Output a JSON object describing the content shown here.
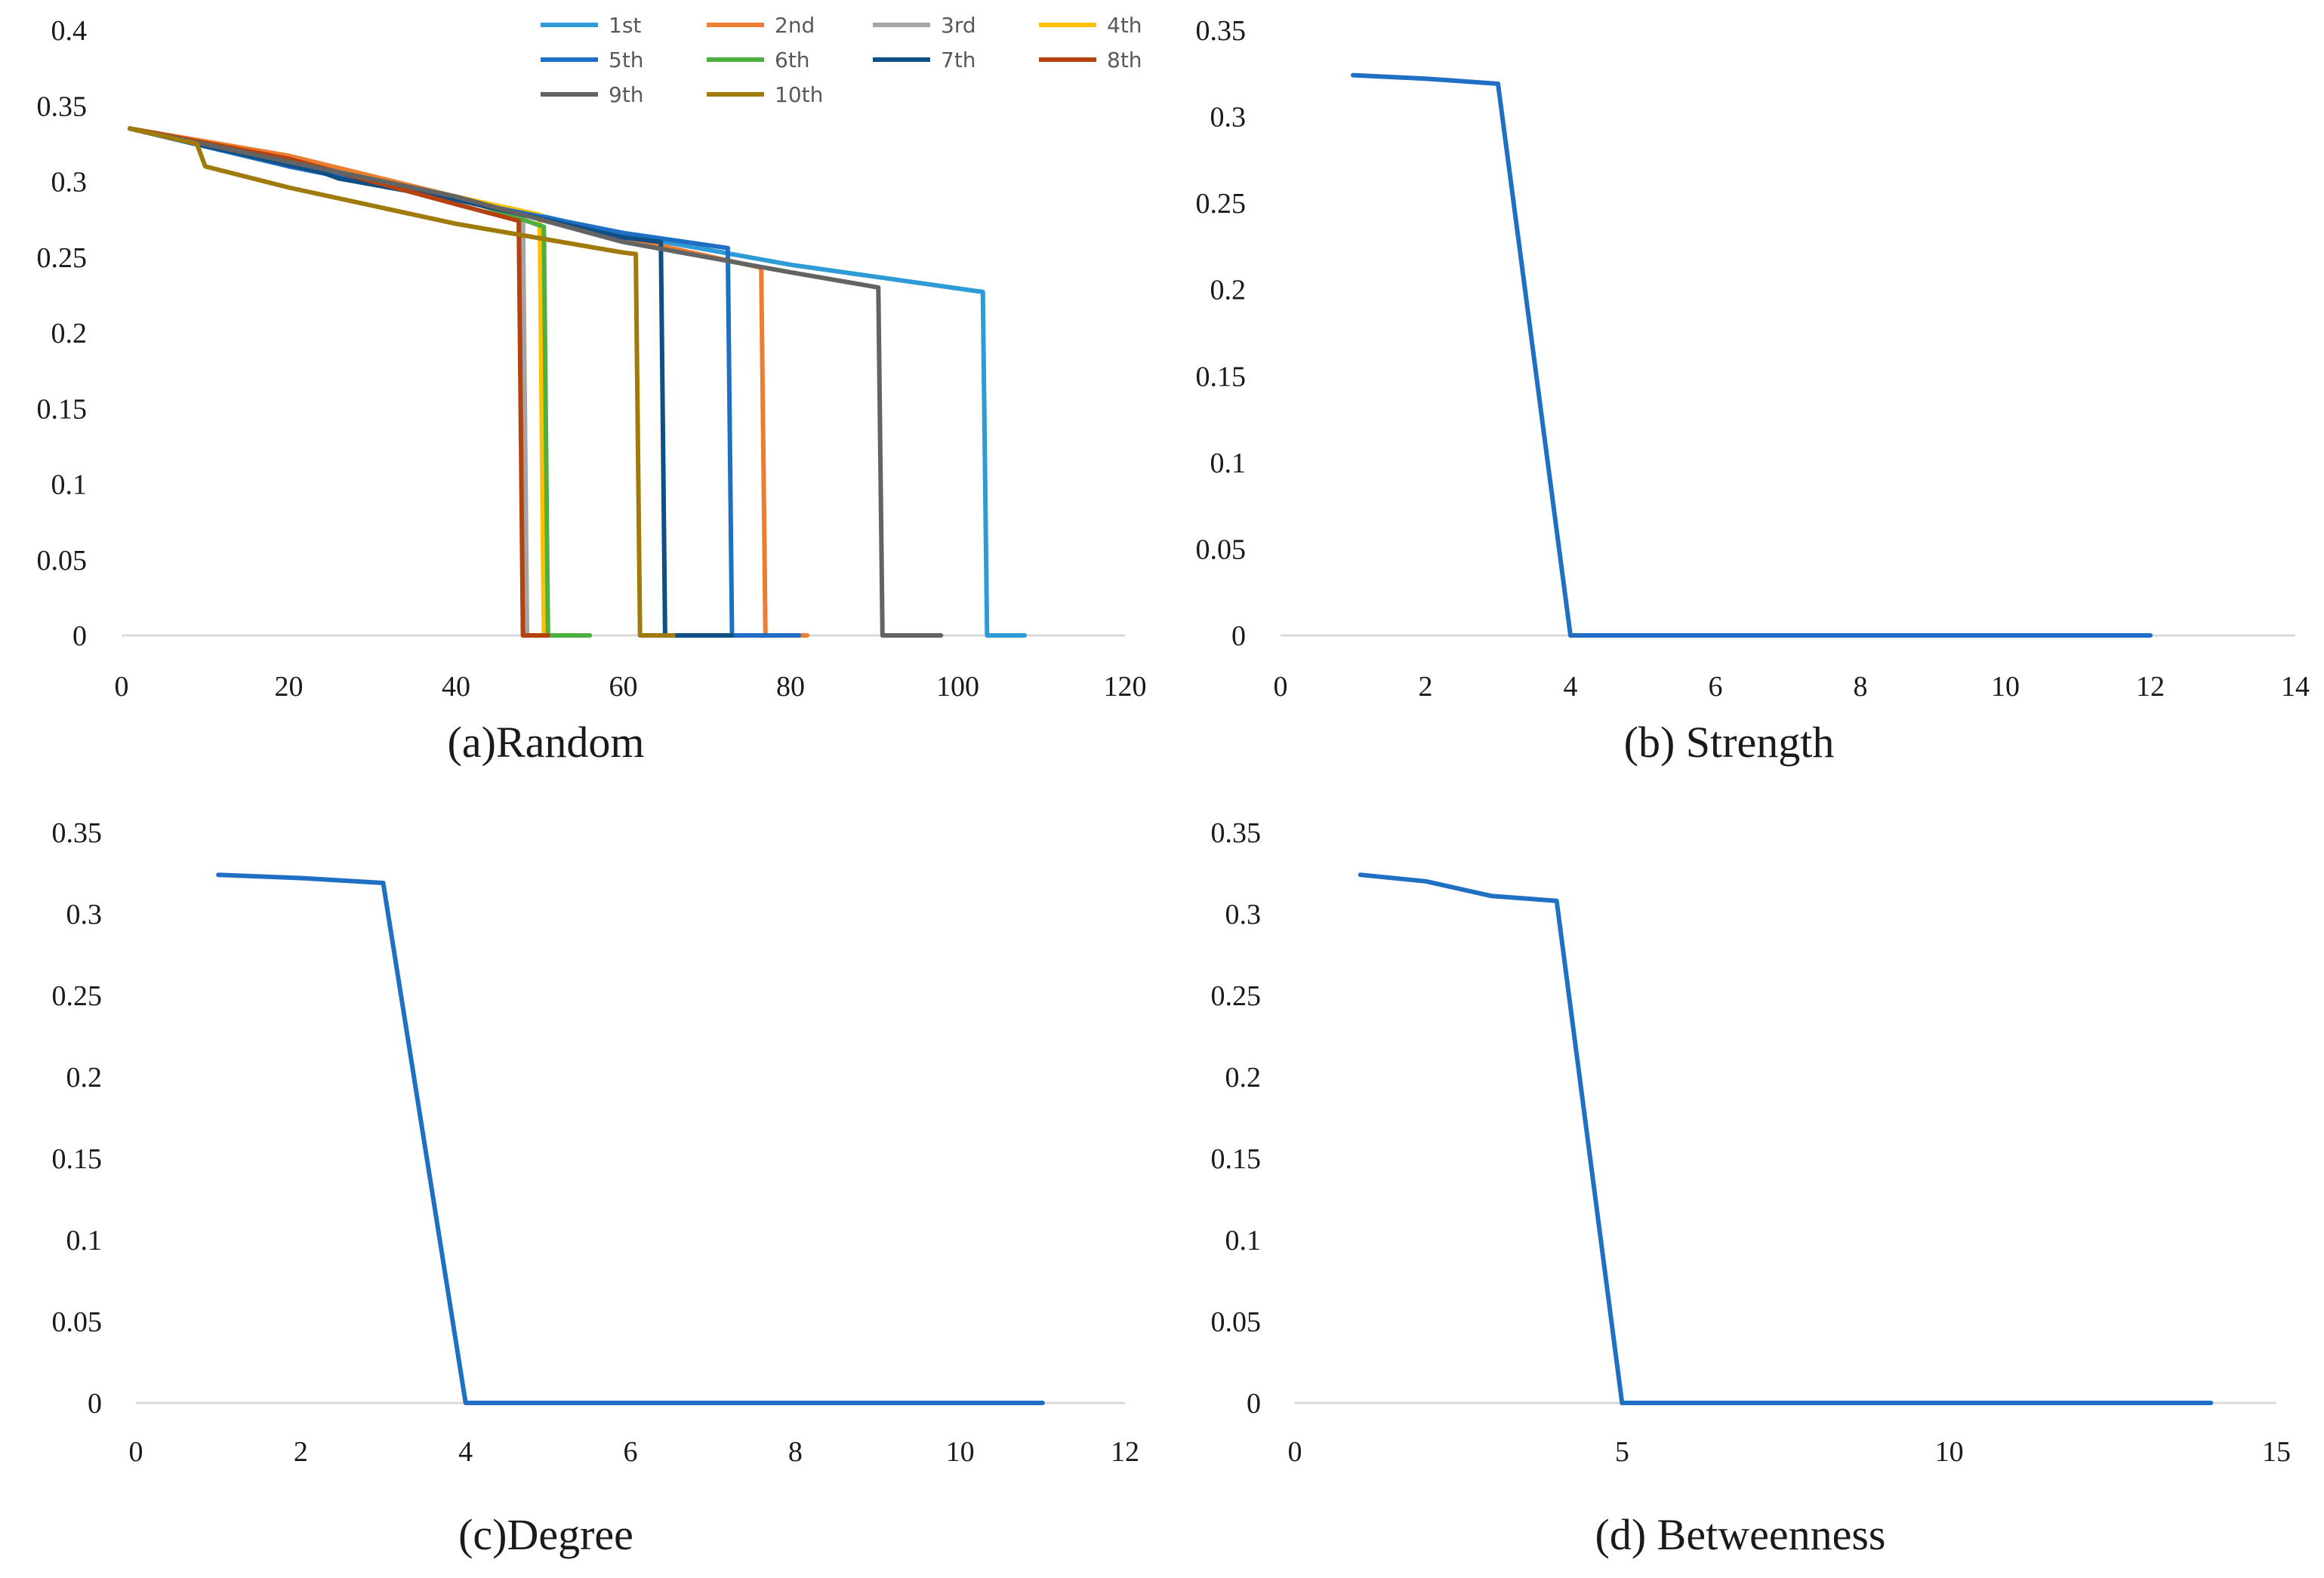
{
  "chart_data": [
    {
      "id": "a",
      "type": "line",
      "caption": "(a)Random",
      "xlim": [
        0,
        120
      ],
      "ylim": [
        0,
        0.4
      ],
      "xticks": [
        0,
        20,
        40,
        60,
        80,
        100,
        120
      ],
      "yticks": [
        0,
        0.05,
        0.1,
        0.15,
        0.2,
        0.25,
        0.3,
        0.35,
        0.4
      ],
      "ytick_labels": [
        "0",
        "0.05",
        "0.1",
        "0.15",
        "0.2",
        "0.25",
        "0.3",
        "0.35",
        "0.4"
      ],
      "legend": {
        "position": "top-right",
        "columns": 4
      },
      "series": [
        {
          "name": "1st",
          "color": "#2E9BD6",
          "x": [
            1,
            20,
            40,
            60,
            80,
            103,
            103.5,
            108
          ],
          "y": [
            0.335,
            0.312,
            0.29,
            0.265,
            0.245,
            0.227,
            0,
            0
          ]
        },
        {
          "name": "2nd",
          "color": "#ED7D31",
          "x": [
            1,
            20,
            40,
            60,
            76.5,
            77,
            82
          ],
          "y": [
            0.335,
            0.317,
            0.29,
            0.263,
            0.243,
            0,
            0
          ]
        },
        {
          "name": "3rd",
          "color": "#A5A5A5",
          "x": [
            1,
            20,
            40,
            48,
            48.5,
            50
          ],
          "y": [
            0.335,
            0.313,
            0.29,
            0.279,
            0,
            0
          ]
        },
        {
          "name": "4th",
          "color": "#FFC000",
          "x": [
            1,
            20,
            40,
            50,
            50.5,
            52
          ],
          "y": [
            0.335,
            0.313,
            0.29,
            0.278,
            0,
            0
          ]
        },
        {
          "name": "5th",
          "color": "#1F6FC5",
          "x": [
            1,
            20,
            40,
            60,
            72.5,
            73,
            81
          ],
          "y": [
            0.335,
            0.31,
            0.288,
            0.266,
            0.256,
            0,
            0
          ]
        },
        {
          "name": "6th",
          "color": "#4CAF3F",
          "x": [
            1,
            20,
            40,
            50.5,
            51,
            56
          ],
          "y": [
            0.335,
            0.313,
            0.29,
            0.27,
            0,
            0
          ]
        },
        {
          "name": "7th",
          "color": "#0E4F86",
          "x": [
            1,
            24,
            26,
            40,
            60,
            64.5,
            65,
            73
          ],
          "y": [
            0.335,
            0.306,
            0.302,
            0.288,
            0.263,
            0.26,
            0,
            0
          ]
        },
        {
          "name": "8th",
          "color": "#B5410E",
          "x": [
            1,
            20,
            40,
            47.5,
            48,
            51
          ],
          "y": [
            0.335,
            0.315,
            0.285,
            0.274,
            0,
            0
          ]
        },
        {
          "name": "9th",
          "color": "#636363",
          "x": [
            1,
            20,
            40,
            60,
            80,
            90.5,
            91,
            98
          ],
          "y": [
            0.335,
            0.313,
            0.29,
            0.26,
            0.24,
            0.23,
            0,
            0
          ]
        },
        {
          "name": "10th",
          "color": "#A07A0A",
          "x": [
            1,
            9,
            10,
            20,
            40,
            60,
            61.5,
            62,
            66
          ],
          "y": [
            0.335,
            0.325,
            0.31,
            0.296,
            0.272,
            0.253,
            0.252,
            0,
            0
          ]
        }
      ]
    },
    {
      "id": "b",
      "type": "line",
      "caption": "(b) Strength",
      "xlim": [
        0,
        14
      ],
      "ylim": [
        0,
        0.35
      ],
      "xticks": [
        0,
        2,
        4,
        6,
        8,
        10,
        12,
        14
      ],
      "yticks": [
        0,
        0.05,
        0.1,
        0.15,
        0.2,
        0.25,
        0.3,
        0.35
      ],
      "ytick_labels": [
        "0",
        "0.05",
        "0.1",
        "0.15",
        "0.2",
        "0.25",
        "0.3",
        "0.35"
      ],
      "series": [
        {
          "name": "Strength",
          "color": "#1F6FC5",
          "x": [
            1,
            2,
            3,
            4,
            5,
            6,
            7,
            8,
            9,
            10,
            11,
            12
          ],
          "y": [
            0.324,
            0.322,
            0.319,
            0,
            0,
            0,
            0,
            0,
            0,
            0,
            0,
            0
          ]
        }
      ]
    },
    {
      "id": "c",
      "type": "line",
      "caption": "(c)Degree",
      "xlim": [
        0,
        12
      ],
      "ylim": [
        0,
        0.35
      ],
      "xticks": [
        0,
        2,
        4,
        6,
        8,
        10,
        12
      ],
      "yticks": [
        0,
        0.05,
        0.1,
        0.15,
        0.2,
        0.25,
        0.3,
        0.35
      ],
      "ytick_labels": [
        "0",
        "0.05",
        "0.1",
        "0.15",
        "0.2",
        "0.25",
        "0.3",
        "0.35"
      ],
      "series": [
        {
          "name": "Degree",
          "color": "#1F6FC5",
          "x": [
            1,
            2,
            3,
            4,
            5,
            6,
            7,
            8,
            9,
            10,
            11
          ],
          "y": [
            0.324,
            0.322,
            0.319,
            0,
            0,
            0,
            0,
            0,
            0,
            0,
            0
          ]
        }
      ]
    },
    {
      "id": "d",
      "type": "line",
      "caption": "(d) Betweenness",
      "xlim": [
        0,
        15
      ],
      "ylim": [
        0,
        0.35
      ],
      "xticks": [
        0,
        5,
        10,
        15
      ],
      "yticks": [
        0,
        0.05,
        0.1,
        0.15,
        0.2,
        0.25,
        0.3,
        0.35
      ],
      "ytick_labels": [
        "0",
        "0.05",
        "0.1",
        "0.15",
        "0.2",
        "0.25",
        "0.3",
        "0.35"
      ],
      "series": [
        {
          "name": "Betweenness",
          "color": "#1F6FC5",
          "x": [
            1,
            2,
            3,
            4,
            5,
            6,
            7,
            8,
            9,
            10,
            11,
            12,
            13,
            14
          ],
          "y": [
            0.324,
            0.32,
            0.311,
            0.308,
            0,
            0,
            0,
            0,
            0,
            0,
            0,
            0,
            0,
            0
          ]
        }
      ]
    }
  ]
}
